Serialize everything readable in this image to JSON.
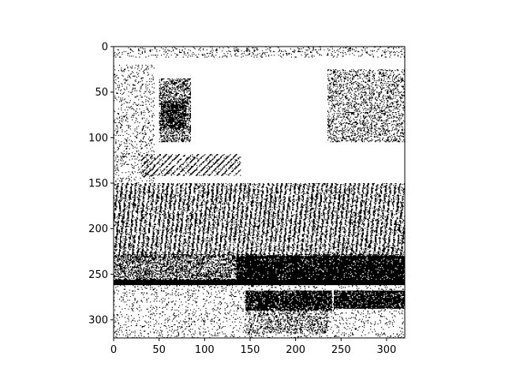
{
  "chart_data": {
    "type": "heatmap",
    "title": "",
    "xlabel": "",
    "ylabel": "",
    "image_size": [
      320,
      320
    ],
    "xlim": [
      0,
      320
    ],
    "ylim": [
      320,
      0
    ],
    "y_axis_inverted": true,
    "colormap": "binary (black / white)",
    "grid": false,
    "legend": "none",
    "x_ticks": [
      0,
      50,
      100,
      150,
      200,
      250,
      300
    ],
    "y_ticks": [
      0,
      50,
      100,
      150,
      200,
      250,
      300
    ],
    "x_tick_labels": [
      "0",
      "50",
      "100",
      "150",
      "200",
      "250",
      "300"
    ],
    "y_tick_labels": [
      "0",
      "50",
      "100",
      "150",
      "200",
      "250",
      "300"
    ],
    "colors": {
      "foreground": "#000000",
      "background": "#ffffff"
    },
    "regions": [
      {
        "name": "bottle",
        "kind": "noise",
        "x": [
          50,
          85
        ],
        "y": [
          35,
          105
        ],
        "density": 0.45
      },
      {
        "name": "bottle-dark-core",
        "kind": "noise",
        "x": [
          52,
          80
        ],
        "y": [
          60,
          90
        ],
        "density": 0.65
      },
      {
        "name": "right-upper-texture",
        "kind": "noise",
        "x": [
          235,
          320
        ],
        "y": [
          25,
          105
        ],
        "density": 0.28
      },
      {
        "name": "left-sparse",
        "kind": "noise",
        "x": [
          0,
          45
        ],
        "y": [
          20,
          150
        ],
        "density": 0.12
      },
      {
        "name": "top-edge",
        "kind": "noise",
        "x": [
          0,
          320
        ],
        "y": [
          0,
          12
        ],
        "density": 0.14
      },
      {
        "name": "diagonal-stripes",
        "kind": "diagonal",
        "x": [
          30,
          140
        ],
        "y": [
          118,
          142
        ],
        "density": 0.8
      },
      {
        "name": "vertical-stripe-band",
        "kind": "vertical",
        "x": [
          0,
          320
        ],
        "y": [
          150,
          232
        ],
        "density": 0.72
      },
      {
        "name": "lower-mixed-band",
        "kind": "noise",
        "x": [
          0,
          320
        ],
        "y": [
          228,
          262
        ],
        "density": 0.5
      },
      {
        "name": "dark-block-right",
        "kind": "noise",
        "x": [
          135,
          320
        ],
        "y": [
          230,
          262
        ],
        "density": 0.85
      },
      {
        "name": "black-strip",
        "kind": "solid",
        "x": [
          0,
          320
        ],
        "y": [
          256,
          262
        ],
        "density": 1.0
      },
      {
        "name": "sparse-bottom",
        "kind": "noise",
        "x": [
          0,
          320
        ],
        "y": [
          262,
          320
        ],
        "density": 0.1
      },
      {
        "name": "dark-block-bottom-1",
        "kind": "noise",
        "x": [
          145,
          240
        ],
        "y": [
          268,
          290
        ],
        "density": 0.85
      },
      {
        "name": "dark-block-bottom-2",
        "kind": "noise",
        "x": [
          242,
          320
        ],
        "y": [
          268,
          288
        ],
        "density": 0.85
      },
      {
        "name": "bottom-scatter",
        "kind": "noise",
        "x": [
          145,
          235
        ],
        "y": [
          290,
          315
        ],
        "density": 0.3
      }
    ]
  }
}
